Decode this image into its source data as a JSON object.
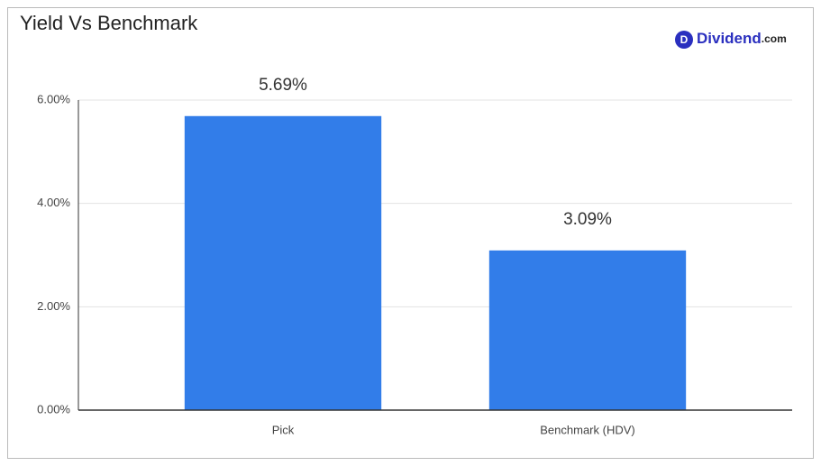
{
  "chart_data": {
    "type": "bar",
    "title": "Yield Vs Benchmark",
    "logo_icon": "D",
    "logo_text": "Dividend",
    "logo_suffix": ".com",
    "categories": [
      "Pick",
      "Benchmark (HDV)"
    ],
    "values": [
      5.69,
      3.09
    ],
    "value_labels": [
      "5.69%",
      "3.09%"
    ],
    "color": "#327de9",
    "ylim": [
      0,
      6
    ],
    "yticks": [
      {
        "value": 0,
        "label": "0.00%"
      },
      {
        "value": 2,
        "label": "2.00%"
      },
      {
        "value": 4,
        "label": "4.00%"
      },
      {
        "value": 6,
        "label": "6.00%"
      }
    ],
    "grid": true
  }
}
